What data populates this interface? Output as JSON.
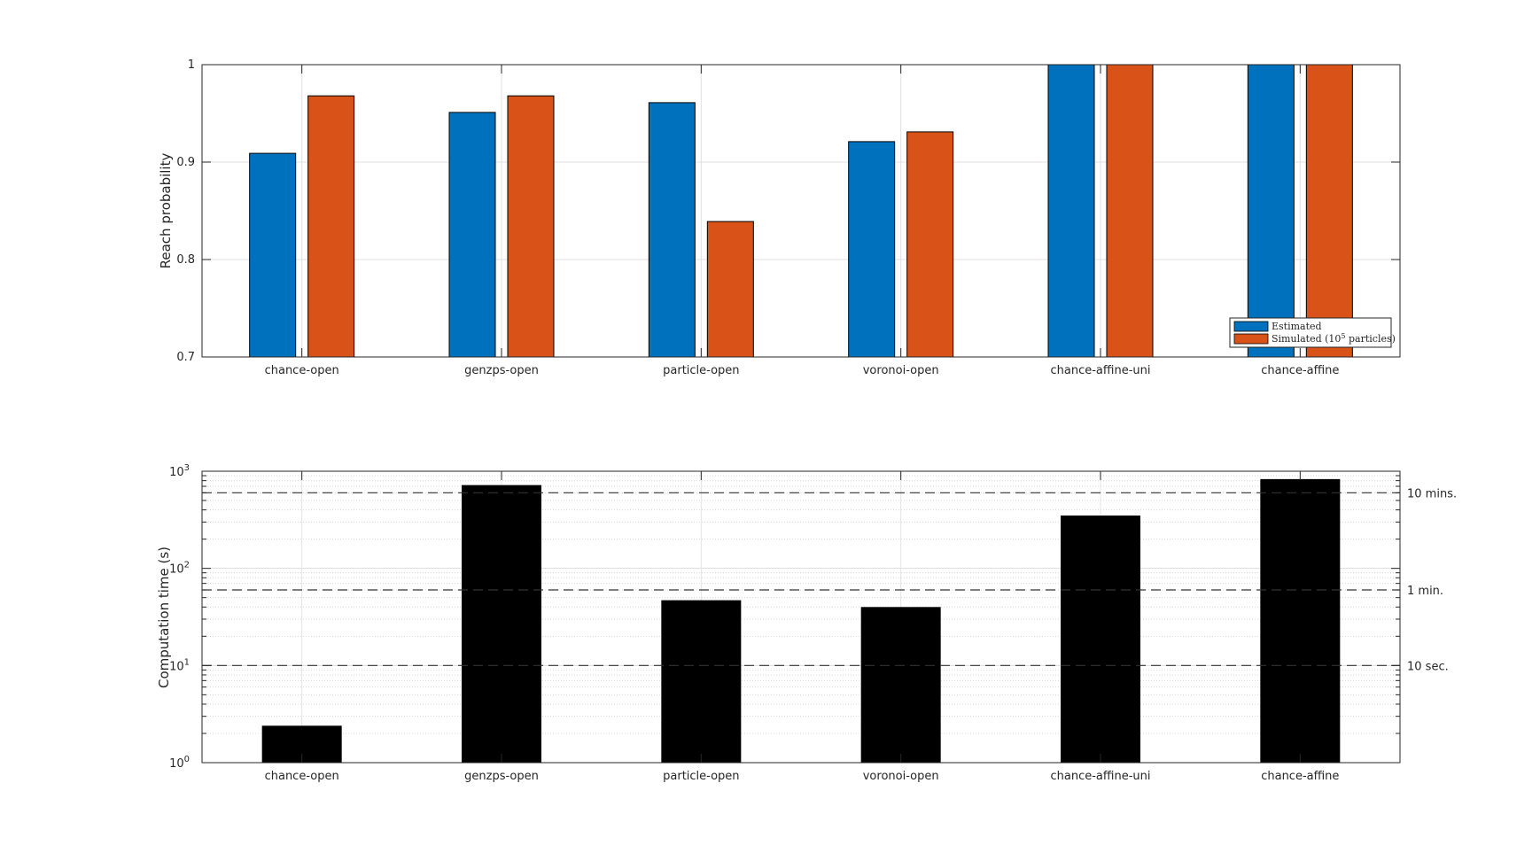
{
  "chart_data": [
    {
      "type": "bar",
      "categories": [
        "chance-open",
        "genzps-open",
        "particle-open",
        "voronoi-open",
        "chance-affine-uni",
        "chance-affine"
      ],
      "series": [
        {
          "name": "Estimated",
          "values": [
            0.909,
            0.951,
            0.961,
            0.921,
            1.0,
            1.0
          ]
        },
        {
          "name": "Simulated (10^5 particles)",
          "values": [
            0.968,
            0.968,
            0.839,
            0.931,
            1.0,
            1.0
          ]
        }
      ],
      "title": "",
      "xlabel": "",
      "ylabel": "Reach probability",
      "ylim": [
        0.7,
        1.0
      ],
      "yticks": [
        "0.7",
        "0.8",
        "0.9",
        "1"
      ],
      "grid": true,
      "legend_position": "bottom-right",
      "legend": {
        "estimated": "Estimated",
        "simulated_prefix": "Simulated (10",
        "simulated_exp": "5",
        "simulated_suffix": " particles)"
      },
      "colors": [
        "#0072BD",
        "#D95319"
      ]
    },
    {
      "type": "bar",
      "categories": [
        "chance-open",
        "genzps-open",
        "particle-open",
        "voronoi-open",
        "chance-affine-uni",
        "chance-affine"
      ],
      "series": [
        {
          "name": "",
          "values": [
            2.4,
            720,
            47,
            40,
            350,
            830
          ]
        }
      ],
      "title": "",
      "xlabel": "",
      "ylabel": "Computation time (s)",
      "yscale": "log",
      "ylim": [
        1,
        1000
      ],
      "ytick_base": "10",
      "ytick_exponents": [
        "0",
        "1",
        "2",
        "3"
      ],
      "grid": true,
      "reference_lines": [
        {
          "value": 600,
          "label": "10 mins."
        },
        {
          "value": 60,
          "label": "1 min."
        },
        {
          "value": 10,
          "label": "10 sec."
        }
      ],
      "colors": [
        "#000000"
      ]
    }
  ]
}
